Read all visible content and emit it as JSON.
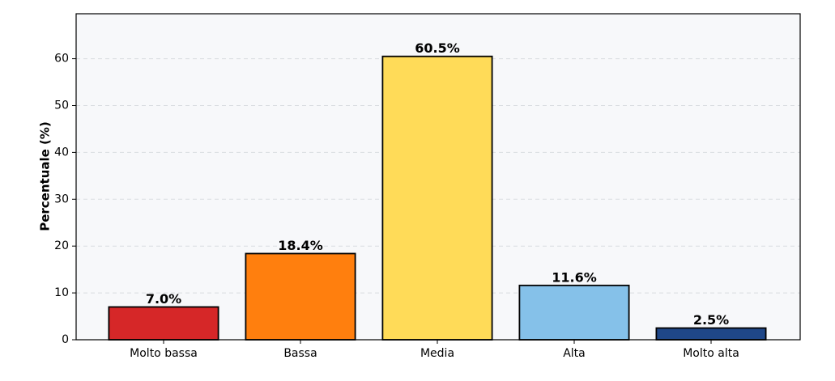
{
  "chart_data": {
    "type": "bar",
    "y_label": "Percentuale (%)",
    "categories": [
      "Molto bassa",
      "Bassa",
      "Media",
      "Alta",
      "Molto alta"
    ],
    "values": [
      7.0,
      18.4,
      60.5,
      11.6,
      2.5
    ],
    "value_labels": [
      "7.0%",
      "18.4%",
      "60.5%",
      "11.6%",
      "2.5%"
    ],
    "colors": [
      "#d62728",
      "#ff7f0e",
      "#ffdb58",
      "#85c1e9",
      "#1f4788"
    ],
    "ylim": [
      0,
      69.6
    ],
    "yticks": [
      0,
      10,
      20,
      30,
      40,
      50,
      60
    ],
    "grid": true
  }
}
